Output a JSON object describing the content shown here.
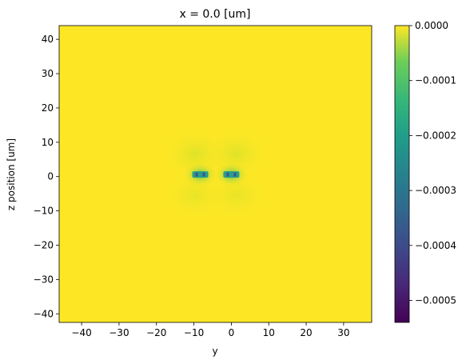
{
  "chart_data": {
    "type": "heatmap",
    "title": "x = 0.0 [um]",
    "xlabel": "y",
    "ylabel": "z position [um]",
    "xlim": [
      -46,
      37.5
    ],
    "ylim": [
      -42.5,
      44
    ],
    "x_ticks": [
      -40,
      -30,
      -20,
      -10,
      0,
      10,
      20,
      30
    ],
    "y_ticks": [
      -40,
      -30,
      -20,
      -10,
      0,
      10,
      20,
      30,
      40
    ],
    "x_tick_labels": [
      "−40",
      "−30",
      "−20",
      "−10",
      "0",
      "10",
      "20",
      "30"
    ],
    "y_tick_labels": [
      "−40",
      "−30",
      "−20",
      "−10",
      "0",
      "10",
      "20",
      "30",
      "40"
    ],
    "colormap": "viridis",
    "colorbar": {
      "range": [
        -0.00054,
        0.0
      ],
      "ticks": [
        0.0,
        -0.0001,
        -0.0002,
        -0.0003,
        -0.0004,
        -0.0005
      ],
      "tick_labels": [
        "0.0000",
        "−0.0001",
        "−0.0002",
        "−0.0003",
        "−0.0004",
        "−0.0005"
      ]
    },
    "background_value": 0.0,
    "features": [
      {
        "name": "left lobe",
        "center_y": -8.3,
        "center_z": 0.6,
        "min_value": -0.00025
      },
      {
        "name": "right lobe",
        "center_y": 0.0,
        "center_z": 0.6,
        "min_value": -0.00025
      }
    ]
  }
}
